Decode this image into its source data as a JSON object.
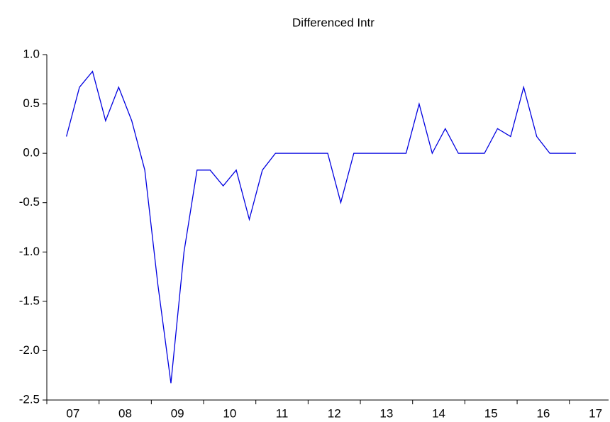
{
  "chart_data": {
    "type": "line",
    "title": "Differenced Intr",
    "series": [
      {
        "name": "Differenced Intr",
        "color": "#0000e0",
        "values": [
          0.17,
          0.67,
          0.83,
          0.33,
          0.67,
          0.33,
          -0.17,
          -1.33,
          -2.33,
          -1.0,
          -0.17,
          -0.17,
          -0.33,
          -0.17,
          -0.67,
          -0.17,
          0,
          0,
          0,
          0,
          0,
          -0.5,
          0,
          0,
          0,
          0,
          0,
          0.5,
          0,
          0.25,
          0,
          0,
          0,
          0.25,
          0.17,
          0.67,
          0.17,
          0,
          0,
          0
        ]
      }
    ],
    "xlim": [
      -1.5,
      41.5
    ],
    "xticks": [
      {
        "value": 0.5,
        "label": "07"
      },
      {
        "value": 4.5,
        "label": "08"
      },
      {
        "value": 8.5,
        "label": "09"
      },
      {
        "value": 12.5,
        "label": "10"
      },
      {
        "value": 16.5,
        "label": "11"
      },
      {
        "value": 20.5,
        "label": "12"
      },
      {
        "value": 24.5,
        "label": "13"
      },
      {
        "value": 28.5,
        "label": "14"
      },
      {
        "value": 32.5,
        "label": "15"
      },
      {
        "value": 36.5,
        "label": "16"
      },
      {
        "value": 40.5,
        "label": "17"
      }
    ],
    "ylim": [
      -2.5,
      1.0
    ],
    "yticks": [
      {
        "value": -2.5,
        "label": "-2.5"
      },
      {
        "value": -2.0,
        "label": "-2.0"
      },
      {
        "value": -1.5,
        "label": "-1.5"
      },
      {
        "value": -1.0,
        "label": "-1.0"
      },
      {
        "value": -0.5,
        "label": "-0.5"
      },
      {
        "value": 0.0,
        "label": "0.0"
      },
      {
        "value": 0.5,
        "label": "0.5"
      },
      {
        "value": 1.0,
        "label": "1.0"
      }
    ],
    "grid": false
  }
}
